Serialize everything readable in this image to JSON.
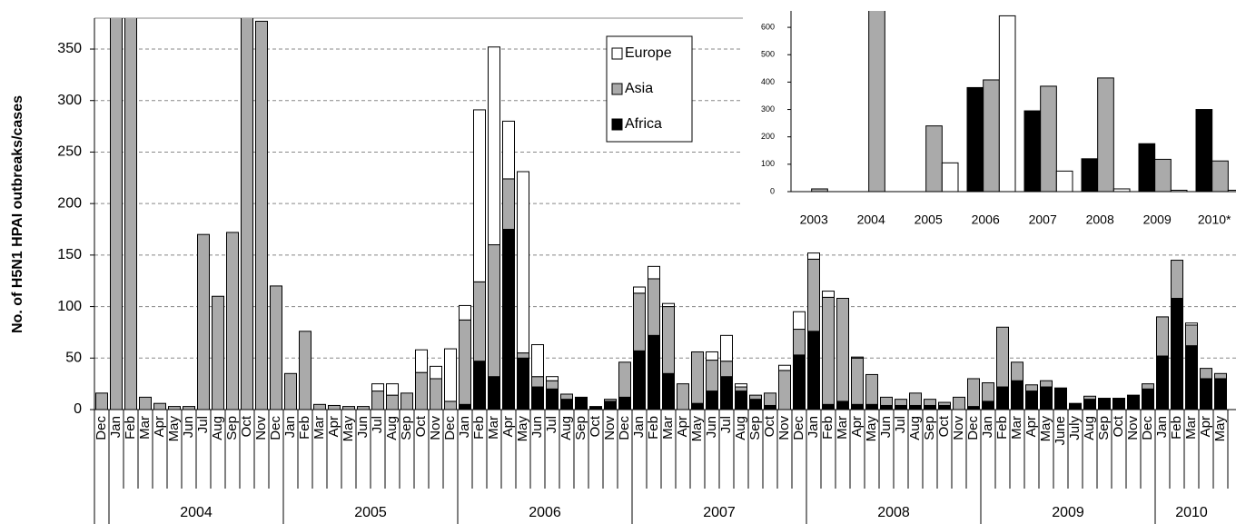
{
  "chart_data": [
    {
      "type": "bar",
      "stacked": true,
      "y_label": "No. of H5N1  HPAI outbreaks/cases",
      "categories": [
        "Dec",
        "Jan",
        "Feb",
        "Mar",
        "Apr",
        "May",
        "Jun",
        "Jul",
        "Aug",
        "Sep",
        "Oct",
        "Nov",
        "Dec",
        "Jan",
        "Feb",
        "Mar",
        "Apr",
        "May",
        "Jun",
        "Jul",
        "Aug",
        "Sep",
        "Oct",
        "Nov",
        "Dec",
        "Jan",
        "Feb",
        "Mar",
        "Apr",
        "May",
        "Jun",
        "Jul",
        "Aug",
        "Sep",
        "Oct",
        "Nov",
        "Dec",
        "Jan",
        "Feb",
        "Mar",
        "Apr",
        "May",
        "Jun",
        "Jul",
        "Aug",
        "Sep",
        "Oct",
        "Nov",
        "Dec",
        "Jan",
        "Feb",
        "Mar",
        "Apr",
        "May",
        "Jun",
        "Jul",
        "Aug",
        "Sep",
        "Oct",
        "Nov",
        "Dec",
        "Jan",
        "Feb",
        "Mar",
        "Apr",
        "May",
        "June",
        "July",
        "Aug",
        "Sep",
        "Oct",
        "Nov",
        "Dec",
        "Jan",
        "Feb",
        "Mar",
        "Apr",
        "May"
      ],
      "year_labels": [
        "2004",
        "2005",
        "2006",
        "2007",
        "2008",
        "2009",
        "2010"
      ],
      "series": [
        {
          "name": "Africa",
          "color": "#000000",
          "values": [
            0,
            0,
            0,
            0,
            0,
            0,
            0,
            0,
            0,
            0,
            0,
            0,
            0,
            0,
            0,
            0,
            0,
            0,
            0,
            0,
            0,
            0,
            0,
            0,
            0,
            5,
            47,
            32,
            175,
            50,
            22,
            20,
            10,
            12,
            3,
            8,
            12,
            57,
            72,
            35,
            0,
            6,
            18,
            32,
            18,
            10,
            4,
            0,
            53,
            76,
            5,
            8,
            5,
            5,
            4,
            4,
            4,
            4,
            4,
            0,
            3,
            8,
            22,
            28,
            18,
            22,
            21,
            6,
            10,
            11,
            11,
            14,
            20,
            52,
            108,
            62,
            30,
            30
          ]
        },
        {
          "name": "Asia",
          "color": "#aaaaaa",
          "values": [
            16,
            400,
            400,
            12,
            6,
            3,
            3,
            170,
            110,
            172,
            400,
            377,
            120,
            35,
            76,
            5,
            4,
            3,
            3,
            18,
            14,
            16,
            36,
            30,
            8,
            82,
            77,
            128,
            49,
            5,
            10,
            8,
            5,
            0,
            0,
            2,
            34,
            56,
            55,
            65,
            25,
            50,
            30,
            15,
            4,
            4,
            12,
            38,
            25,
            70,
            104,
            100,
            45,
            29,
            8,
            6,
            12,
            6,
            3,
            12,
            27,
            18,
            58,
            18,
            6,
            6,
            0,
            0,
            3,
            0,
            0,
            0,
            5,
            38,
            37,
            20,
            10,
            5
          ]
        },
        {
          "name": "Europe",
          "color": "#ffffff",
          "values": [
            0,
            0,
            0,
            0,
            0,
            0,
            0,
            0,
            0,
            0,
            0,
            0,
            0,
            0,
            0,
            0,
            0,
            0,
            0,
            7,
            11,
            0,
            22,
            12,
            51,
            14,
            167,
            192,
            56,
            176,
            31,
            4,
            0,
            0,
            0,
            0,
            0,
            6,
            12,
            3,
            0,
            0,
            8,
            25,
            3,
            0,
            0,
            5,
            17,
            6,
            6,
            0,
            1,
            0,
            0,
            0,
            0,
            0,
            0,
            0,
            0,
            0,
            0,
            0,
            0,
            0,
            0,
            0,
            0,
            0,
            0,
            0,
            0,
            0,
            0,
            2,
            0,
            0
          ]
        }
      ],
      "ylim": [
        0,
        380
      ],
      "yticks": [
        0,
        50,
        100,
        150,
        200,
        250,
        300,
        350
      ],
      "grid": true,
      "legend": "top-right"
    },
    {
      "type": "bar",
      "stacked": false,
      "categories": [
        "2003",
        "2004",
        "2005",
        "2006",
        "2007",
        "2008",
        "2009",
        "2010*"
      ],
      "series": [
        {
          "color": "#000000",
          "values": [
            0,
            0,
            0,
            380,
            295,
            120,
            175,
            300
          ]
        },
        {
          "color": "#aaaaaa",
          "values": [
            10,
            700,
            240,
            408,
            385,
            415,
            118,
            112
          ]
        },
        {
          "color": "#ffffff",
          "values": [
            0,
            0,
            105,
            642,
            75,
            10,
            5,
            5
          ]
        }
      ],
      "ylim": [
        0,
        660
      ],
      "yticks": [
        0,
        100,
        200,
        300,
        400,
        500,
        600
      ],
      "grid": false
    }
  ]
}
